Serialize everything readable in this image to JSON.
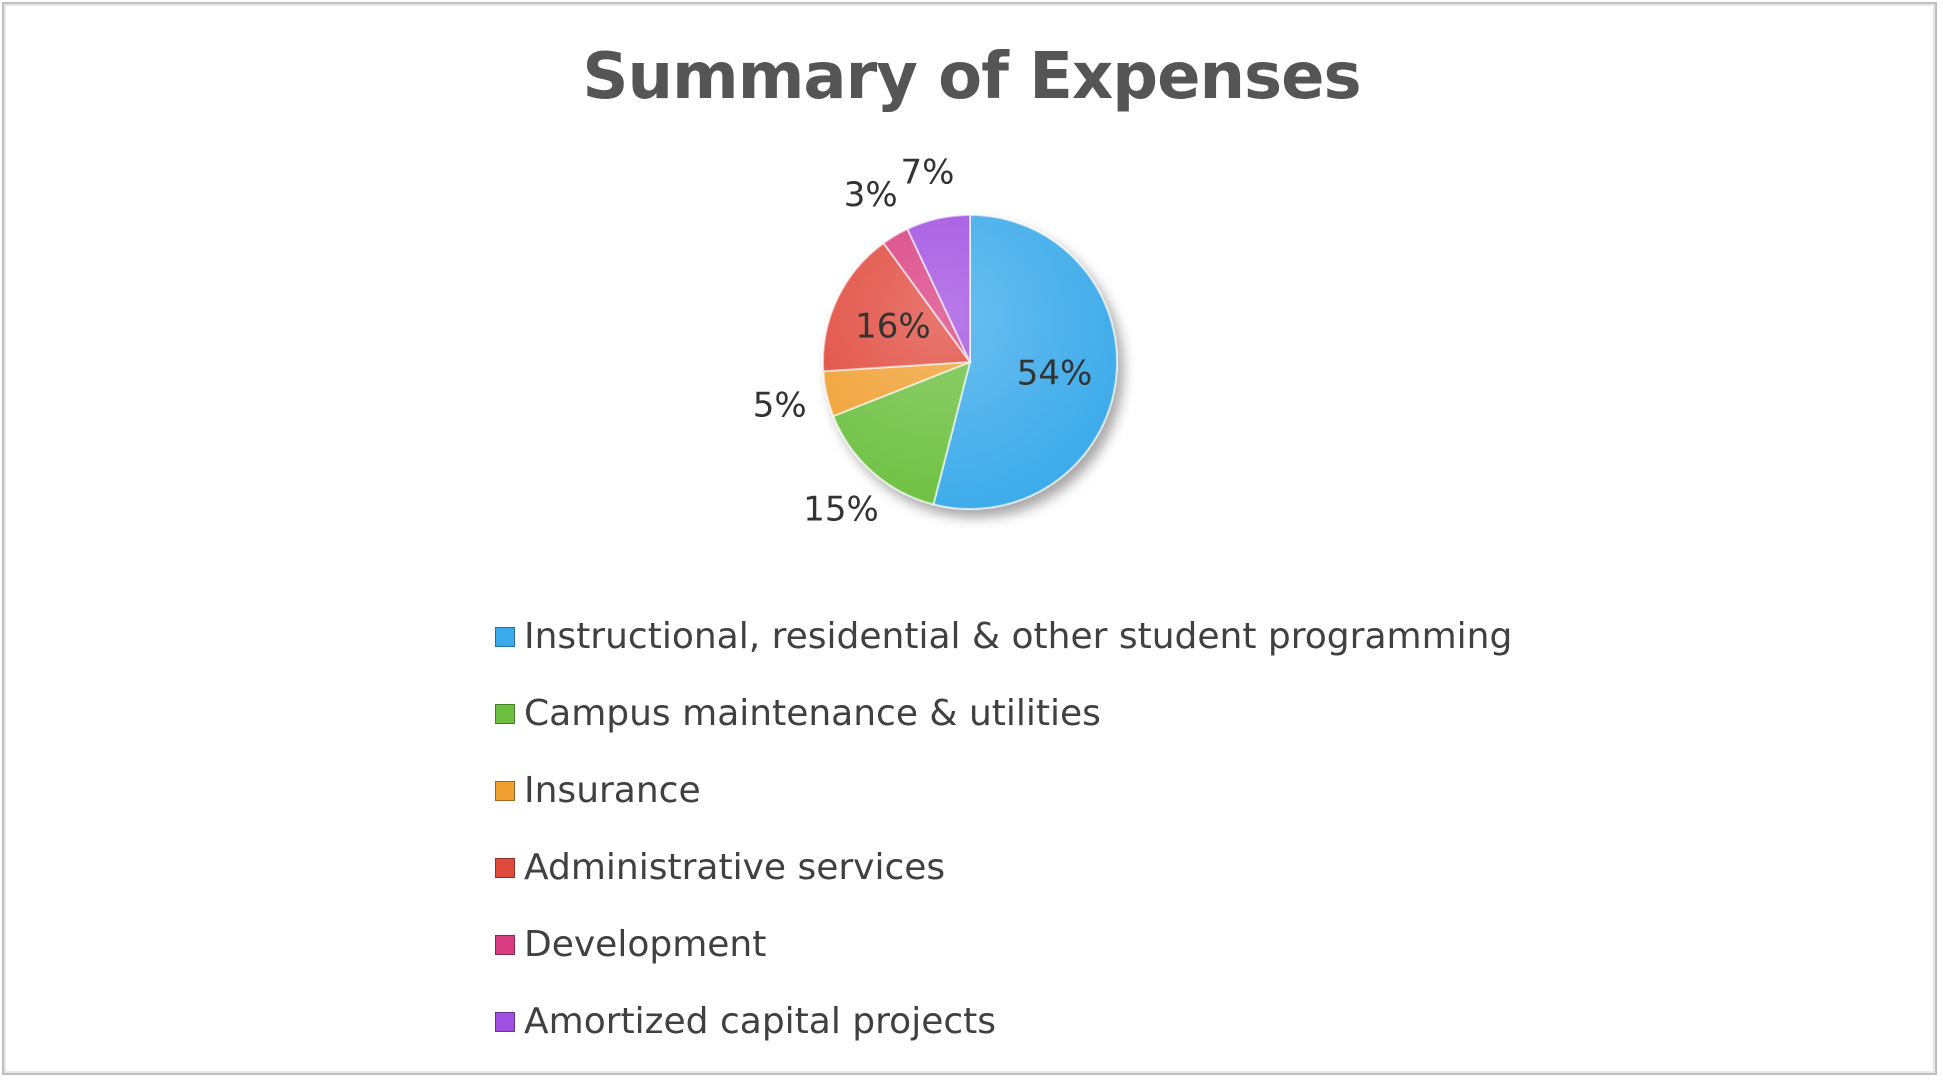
{
  "chart_data": {
    "type": "pie",
    "title": "Summary of Expenses",
    "legend_position": "bottom",
    "slices": [
      {
        "name": "Instructional, residential & other student programming",
        "value": 54,
        "label": "54%",
        "color": "#3aaaea"
      },
      {
        "name": "Campus maintenance & utilities",
        "value": 15,
        "label": "15%",
        "color": "#6cc040"
      },
      {
        "name": "Insurance",
        "value": 5,
        "label": "5%",
        "color": "#f0a030"
      },
      {
        "name": "Administrative services",
        "value": 16,
        "label": "16%",
        "color": "#e04a3c"
      },
      {
        "name": "Development",
        "value": 3,
        "label": "3%",
        "color": "#d93c80"
      },
      {
        "name": "Amortized capital projects",
        "value": 7,
        "label": "7%",
        "color": "#a050e0"
      }
    ]
  }
}
